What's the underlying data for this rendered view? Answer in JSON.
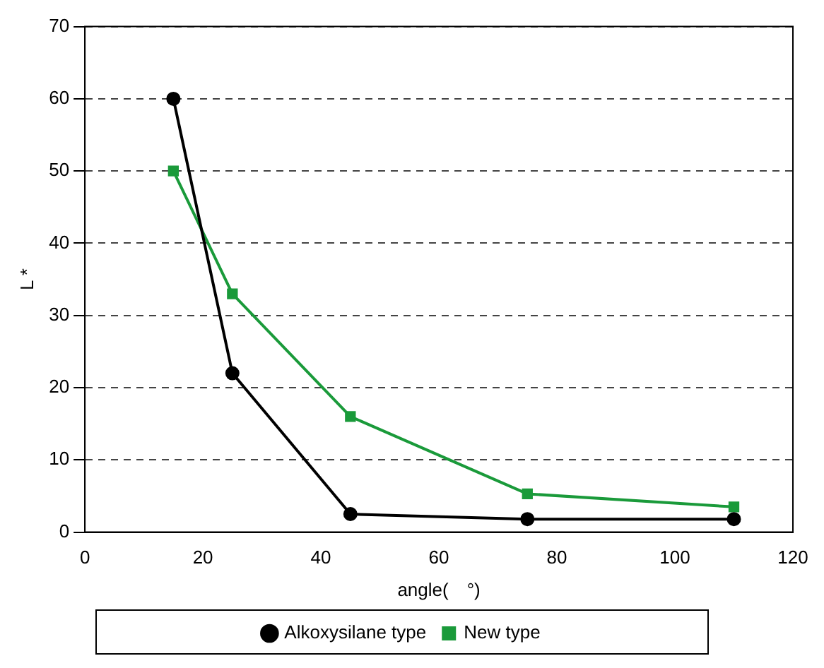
{
  "chart_data": {
    "type": "line",
    "xlabel": "angle(　°)",
    "ylabel": "L *",
    "xlim": [
      0,
      120
    ],
    "xticks": [
      0,
      20,
      40,
      60,
      80,
      100,
      120
    ],
    "ylim": [
      0,
      70
    ],
    "yticks": [
      0,
      10,
      20,
      30,
      40,
      50,
      60,
      70
    ],
    "grid": "y",
    "legend": "bottom",
    "series": [
      {
        "name": "Alkoxysilane type",
        "color": "#000000",
        "marker": "circle",
        "x": [
          15,
          25,
          45,
          75,
          110
        ],
        "values": [
          60,
          22,
          2.5,
          1.8,
          1.8
        ]
      },
      {
        "name": "New type",
        "color": "#1a9a3a",
        "marker": "square",
        "x": [
          15,
          25,
          45,
          75,
          110
        ],
        "values": [
          50,
          33,
          16,
          5.3,
          3.5
        ]
      }
    ]
  }
}
